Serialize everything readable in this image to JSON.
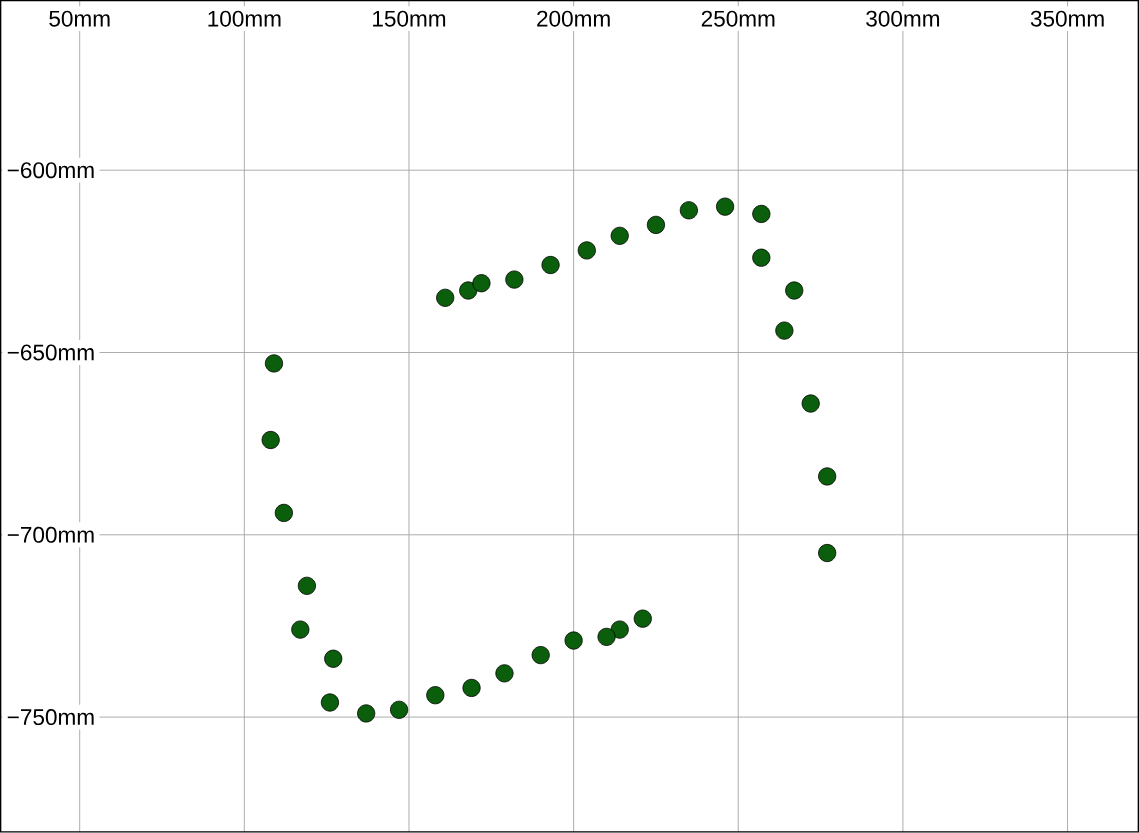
{
  "chart_data": {
    "type": "scatter",
    "x": [
      161,
      168,
      172,
      182,
      193,
      204,
      214,
      225,
      235,
      246,
      257,
      257,
      267,
      264,
      272,
      277,
      277,
      221,
      214,
      210,
      200,
      190,
      179,
      169,
      158,
      147,
      137,
      126,
      127,
      117,
      119,
      112,
      108,
      109
    ],
    "series": [
      {
        "color": "#0b5e0b",
        "values": [
          -635,
          -633,
          -631,
          -630,
          -626,
          -622,
          -618,
          -615,
          -611,
          -610,
          -612,
          -624,
          -633,
          -644,
          -664,
          -684,
          -705,
          -723,
          -726,
          -728,
          -729,
          -733,
          -738,
          -742,
          -744,
          -748,
          -749,
          -746,
          -734,
          -726,
          -714,
          -694,
          -674,
          -653
        ]
      }
    ],
    "xlim": [
      26,
      371.5
    ],
    "ylim": [
      -781.5,
      -553.5
    ],
    "xticks": [
      {
        "value": 50,
        "label": "50mm"
      },
      {
        "value": 100,
        "label": "100mm"
      },
      {
        "value": 150,
        "label": "150mm"
      },
      {
        "value": 200,
        "label": "200mm"
      },
      {
        "value": 250,
        "label": "250mm"
      },
      {
        "value": 300,
        "label": "300mm"
      },
      {
        "value": 350,
        "label": "350mm"
      }
    ],
    "yticks": [
      {
        "value": -600,
        "label": "−600mm"
      },
      {
        "value": -650,
        "label": "−650mm"
      },
      {
        "value": -700,
        "label": "−700mm"
      },
      {
        "value": -750,
        "label": "−750mm"
      }
    ],
    "grid": true
  }
}
